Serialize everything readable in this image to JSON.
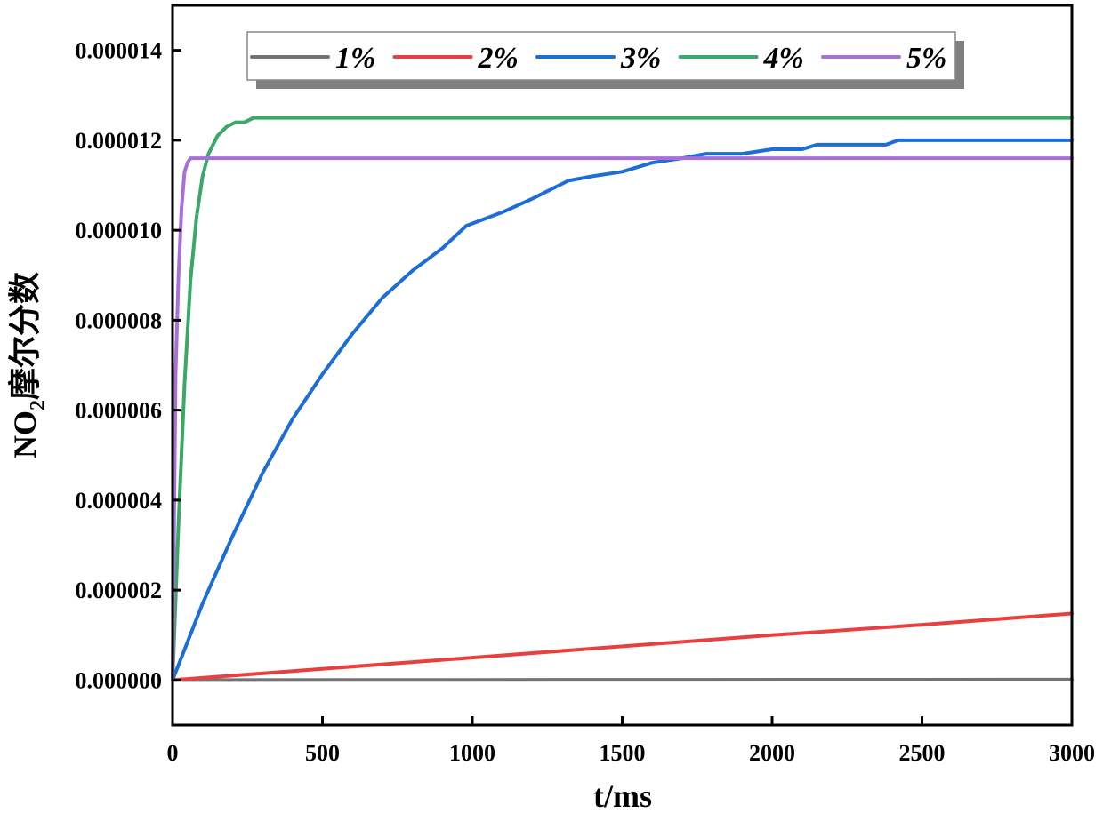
{
  "chart_data": {
    "type": "line",
    "xlabel": "t/ms",
    "ylabel_main": "NO",
    "ylabel_sub": "2",
    "ylabel_rest": "摩尔分数",
    "xlim": [
      0,
      3000
    ],
    "ylim": [
      -1e-06,
      1.5e-05
    ],
    "xticks": [
      0,
      500,
      1000,
      1500,
      2000,
      2500,
      3000
    ],
    "xtick_labels": [
      "0",
      "500",
      "1000",
      "1500",
      "2000",
      "2500",
      "3000"
    ],
    "yticks": [
      0,
      2e-06,
      4e-06,
      6e-06,
      8e-06,
      1e-05,
      1.2e-05,
      1.4e-05
    ],
    "ytick_labels": [
      "0.000000",
      "0.000002",
      "0.000004",
      "0.000006",
      "0.000008",
      "0.000010",
      "0.000012",
      "0.000014"
    ],
    "grid": false,
    "legend_position": "top",
    "series": [
      {
        "name": "1%",
        "color": "#737373",
        "x": [
          0,
          3000
        ],
        "y": [
          0,
          1e-08
        ]
      },
      {
        "name": "2%",
        "color": "#e8403e",
        "x": [
          0,
          500,
          1000,
          1500,
          2000,
          2500,
          3000
        ],
        "y": [
          0,
          2.5e-07,
          5e-07,
          7.5e-07,
          1e-06,
          1.23e-06,
          1.48e-06
        ]
      },
      {
        "name": "3%",
        "color": "#1d6ed4",
        "x": [
          0,
          100,
          200,
          300,
          400,
          500,
          600,
          700,
          800,
          900,
          980,
          1100,
          1200,
          1320,
          1400,
          1500,
          1600,
          1700,
          1780,
          1900,
          2000,
          2100,
          2150,
          2380,
          2420,
          3000
        ],
        "y": [
          0,
          1.7e-06,
          3.2e-06,
          4.6e-06,
          5.8e-06,
          6.8e-06,
          7.7e-06,
          8.5e-06,
          9.1e-06,
          9.6e-06,
          1.01e-05,
          1.04e-05,
          1.07e-05,
          1.11e-05,
          1.12e-05,
          1.13e-05,
          1.15e-05,
          1.16e-05,
          1.17e-05,
          1.17e-05,
          1.18e-05,
          1.18e-05,
          1.19e-05,
          1.19e-05,
          1.2e-05,
          1.2e-05
        ]
      },
      {
        "name": "4%",
        "color": "#3aa866",
        "x": [
          0,
          20,
          40,
          60,
          80,
          100,
          120,
          150,
          180,
          210,
          240,
          270,
          300,
          3000
        ],
        "y": [
          0,
          3.5e-06,
          6.6e-06,
          8.9e-06,
          1.03e-05,
          1.12e-05,
          1.17e-05,
          1.21e-05,
          1.23e-05,
          1.24e-05,
          1.24e-05,
          1.25e-05,
          1.25e-05,
          1.25e-05
        ]
      },
      {
        "name": "5%",
        "color": "#a96fd9",
        "x": [
          0,
          10,
          20,
          30,
          40,
          50,
          60,
          70,
          3000
        ],
        "y": [
          0,
          6.8e-06,
          9e-06,
          1.05e-05,
          1.13e-05,
          1.15e-05,
          1.16e-05,
          1.16e-05,
          1.16e-05
        ]
      }
    ]
  }
}
